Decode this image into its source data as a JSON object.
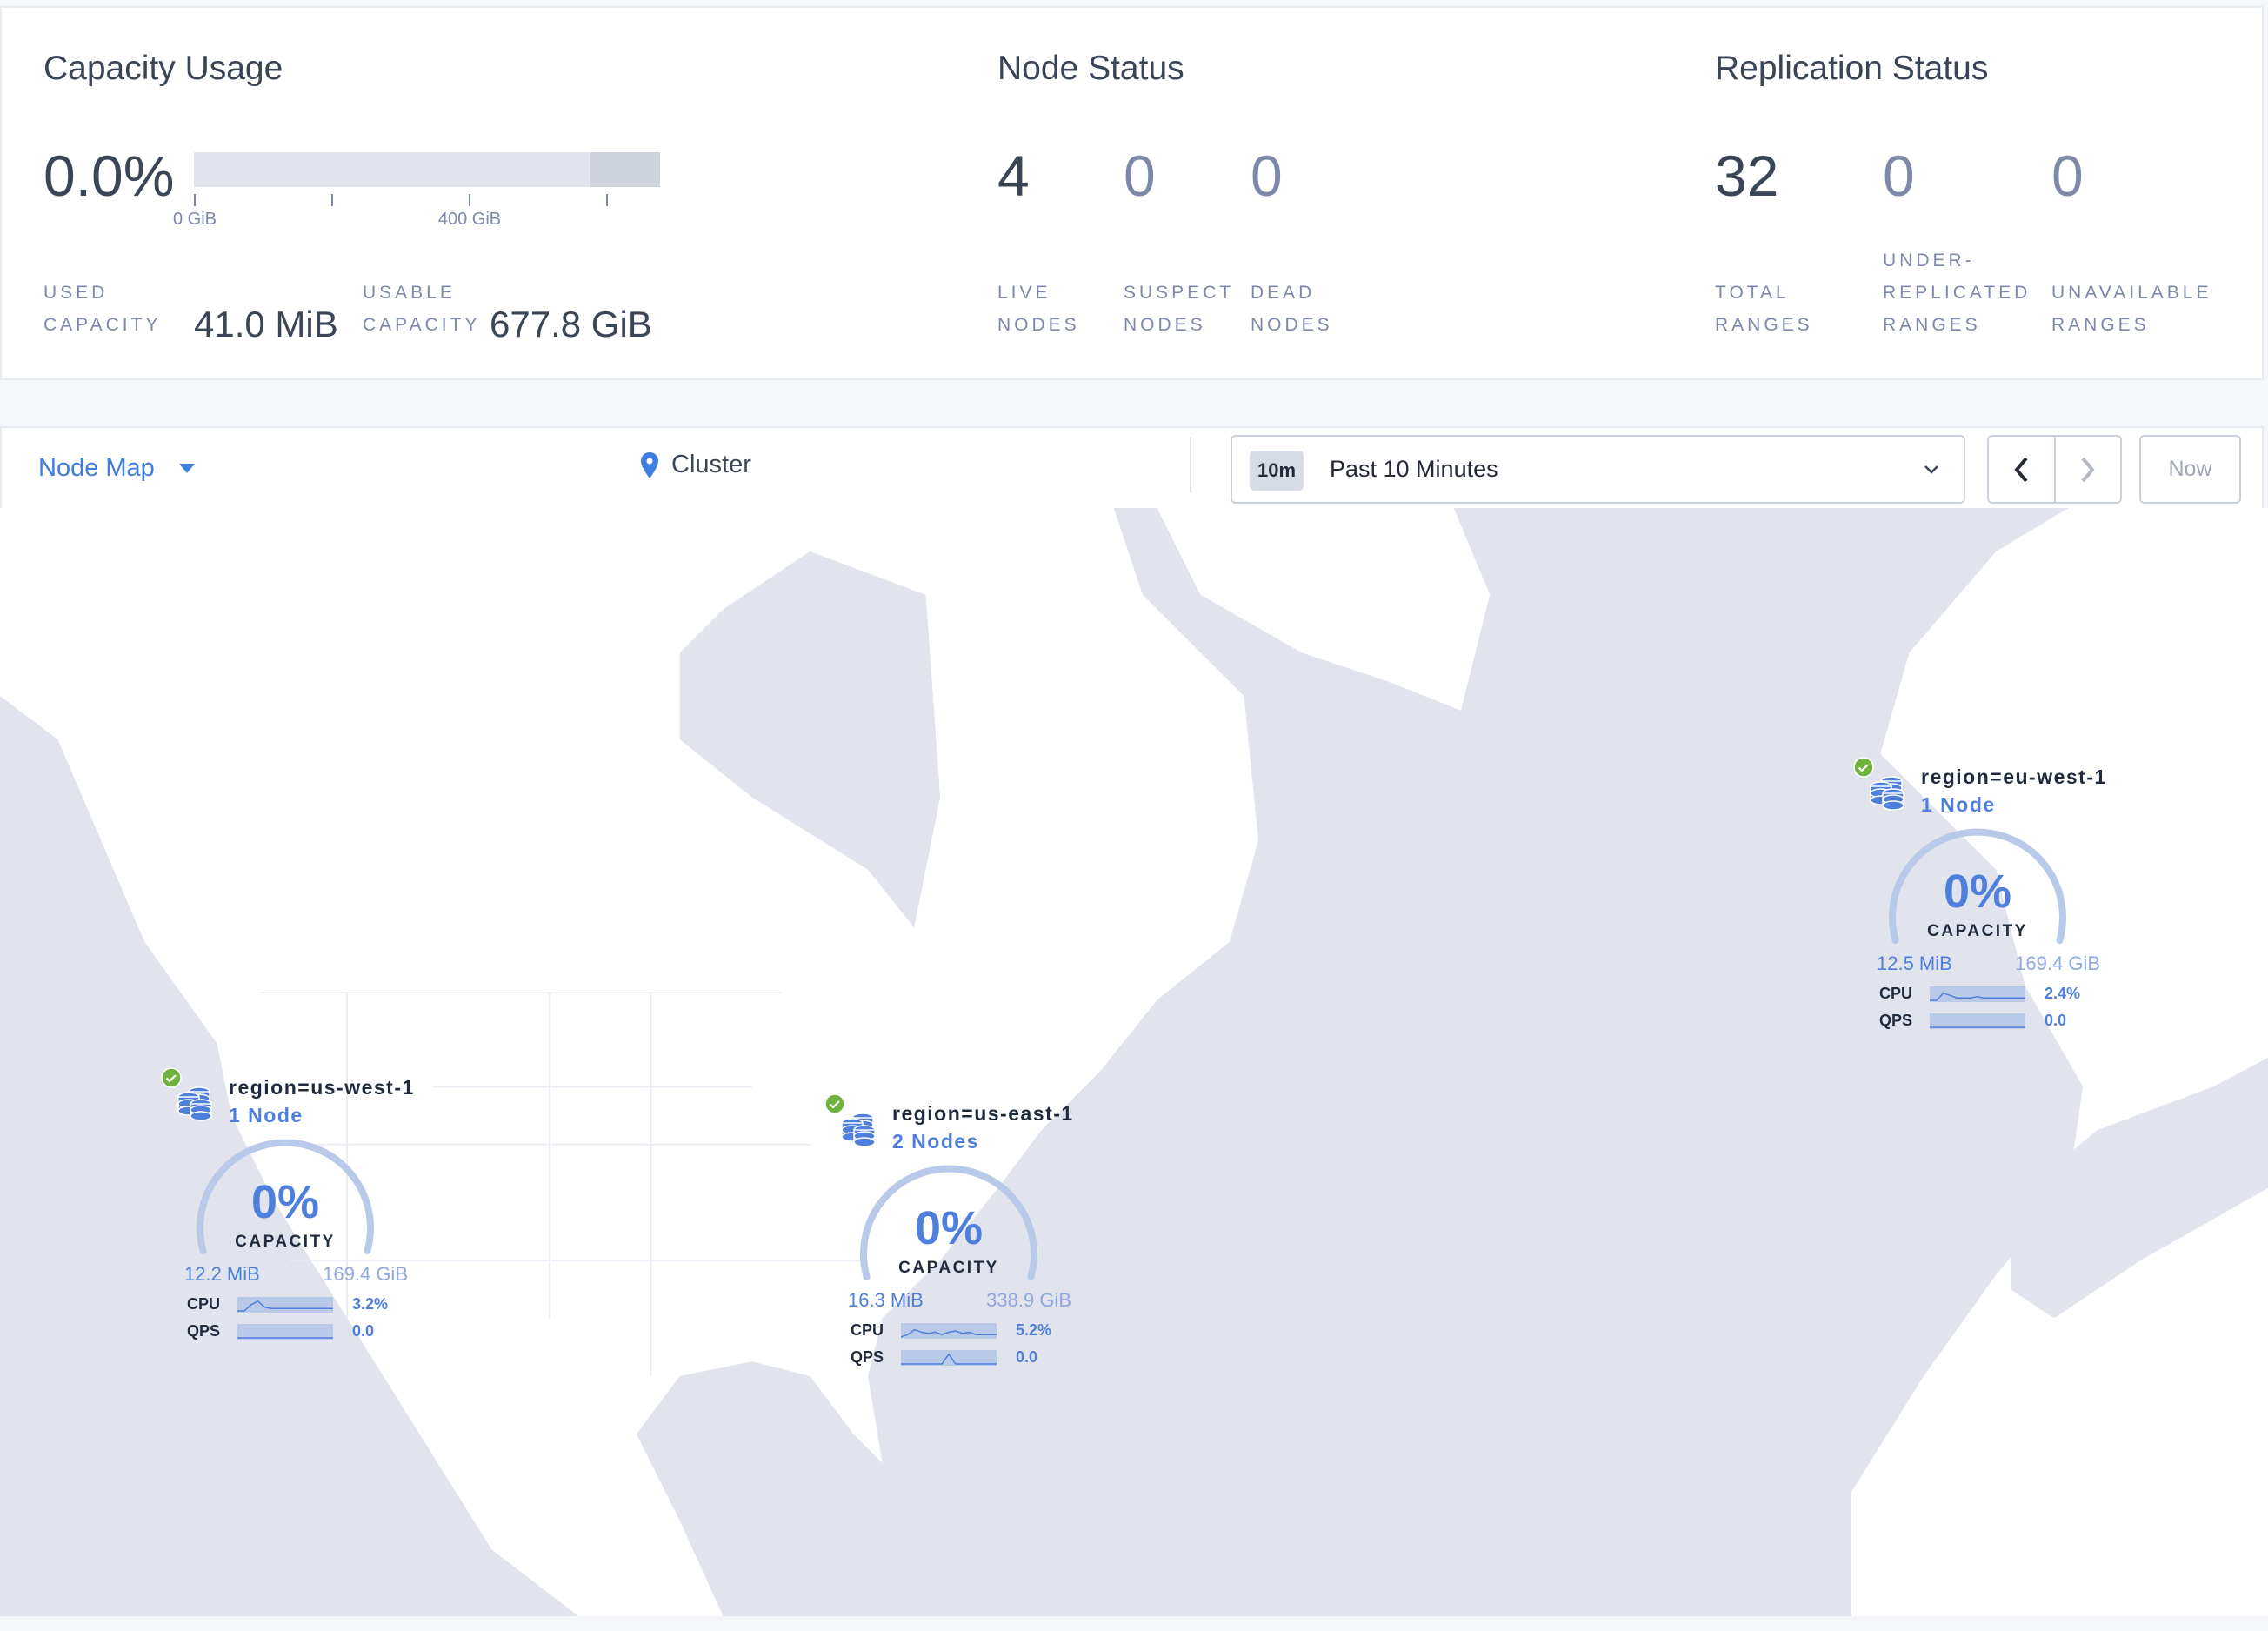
{
  "capacity": {
    "title": "Capacity Usage",
    "percent": "0.0%",
    "used_fraction": 0.0,
    "ticks": [
      "0 GiB",
      "400 GiB"
    ],
    "used_label_1": "USED",
    "used_label_2": "CAPACITY",
    "used_value": "41.0 MiB",
    "usable_label_1": "USABLE",
    "usable_label_2": "CAPACITY",
    "usable_value": "677.8 GiB"
  },
  "node_status": {
    "title": "Node Status",
    "items": [
      {
        "value": "4",
        "label_1": "LIVE",
        "label_2": "NODES"
      },
      {
        "value": "0",
        "label_1": "SUSPECT",
        "label_2": "NODES"
      },
      {
        "value": "0",
        "label_1": "DEAD",
        "label_2": "NODES"
      }
    ]
  },
  "replication": {
    "title": "Replication Status",
    "items": [
      {
        "value": "32",
        "label_0": "",
        "label_1": "TOTAL",
        "label_2": "RANGES"
      },
      {
        "value": "0",
        "label_0": "UNDER-",
        "label_1": "REPLICATED",
        "label_2": "RANGES"
      },
      {
        "value": "0",
        "label_0": "",
        "label_1": "UNAVAILABLE",
        "label_2": "RANGES"
      }
    ]
  },
  "toolbar": {
    "view_select": "Node Map",
    "breadcrumb": "Cluster",
    "time_badge": "10m",
    "time_range": "Past 10 Minutes",
    "now_label": "Now"
  },
  "colors": {
    "accent": "#4d7fdb",
    "healthy": "#6fb23e",
    "land": "#ffffff",
    "water": "#e1e4ec"
  },
  "localities": [
    {
      "name": "region=us-west-1",
      "nodes": "1 Node",
      "capacity_pct": "0%",
      "capacity_label": "CAPACITY",
      "used": "12.2 MiB",
      "total": "169.4 GiB",
      "cpu_label": "CPU",
      "cpu": "3.2%",
      "qps_label": "QPS",
      "qps": "0.0",
      "status": "healthy",
      "cpu_series": [
        0,
        0,
        5,
        8,
        3,
        2,
        2,
        2,
        2,
        2,
        2,
        2,
        2,
        2,
        2
      ],
      "qps_series": [
        0,
        0,
        0,
        0,
        0,
        0,
        0,
        0,
        0,
        0,
        0,
        0,
        0,
        0,
        0
      ]
    },
    {
      "name": "region=us-east-1",
      "nodes": "2 Nodes",
      "capacity_pct": "0%",
      "capacity_label": "CAPACITY",
      "used": "16.3 MiB",
      "total": "338.9 GiB",
      "cpu_label": "CPU",
      "cpu": "5.2%",
      "qps_label": "QPS",
      "qps": "0.0",
      "status": "healthy",
      "cpu_series": [
        0,
        2,
        6,
        4,
        3,
        4,
        2,
        4,
        5,
        3,
        4,
        2,
        2,
        2,
        2
      ],
      "qps_series": [
        0,
        0,
        0,
        0,
        0,
        0,
        0,
        8,
        0,
        0,
        0,
        0,
        0,
        0,
        0
      ]
    },
    {
      "name": "region=eu-west-1",
      "nodes": "1 Node",
      "capacity_pct": "0%",
      "capacity_label": "CAPACITY",
      "used": "12.5 MiB",
      "total": "169.4 GiB",
      "cpu_label": "CPU",
      "cpu": "2.4%",
      "qps_label": "QPS",
      "qps": "0.0",
      "status": "healthy",
      "cpu_series": [
        0,
        0,
        6,
        4,
        2,
        2,
        2,
        3,
        2,
        2,
        2,
        2,
        2,
        2,
        2
      ],
      "qps_series": [
        0,
        0,
        0,
        0,
        0,
        0,
        0,
        0,
        0,
        0,
        0,
        0,
        0,
        0,
        0
      ]
    }
  ]
}
